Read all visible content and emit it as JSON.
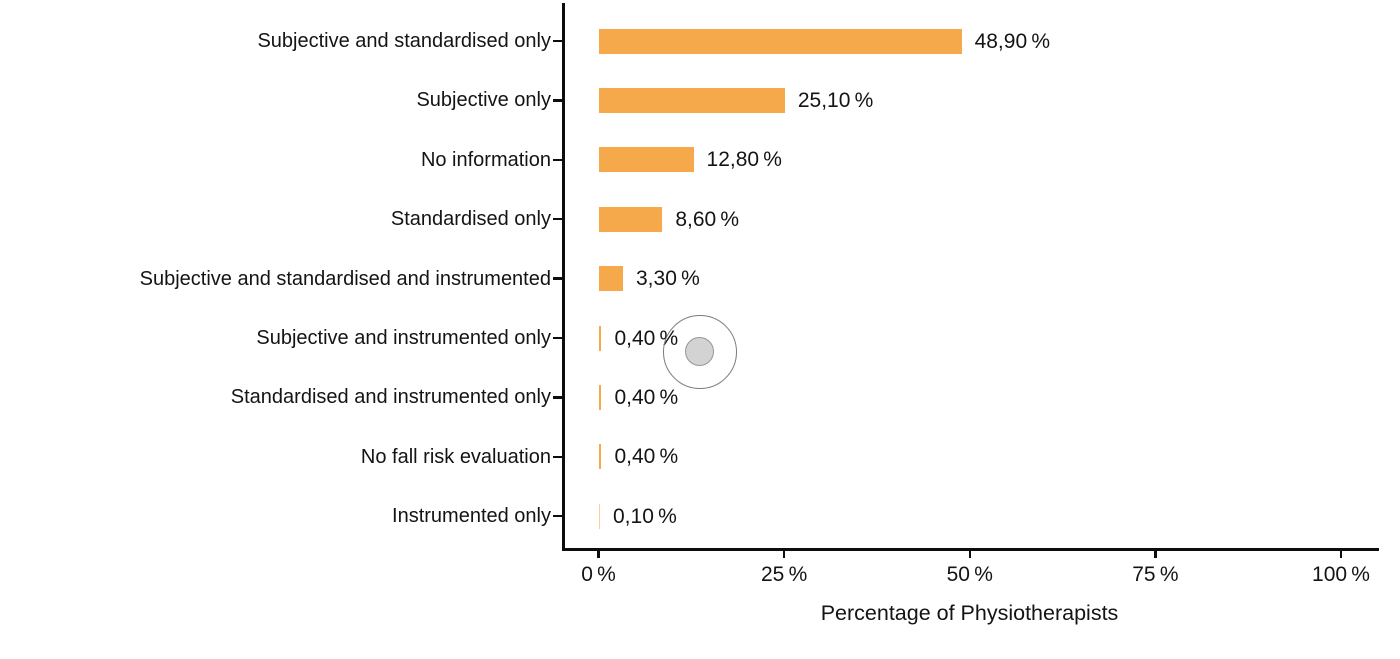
{
  "chart_data": {
    "type": "bar",
    "orientation": "horizontal",
    "title": "",
    "xlabel": "Percentage of Physiotherapists",
    "ylabel": "",
    "xlim": [
      0,
      100
    ],
    "grid": false,
    "legend": false,
    "bar_color": "#F5A94B",
    "axis_color": "#0d0d0d",
    "categories": [
      "Subjective and standardised only",
      "Subjective only",
      "No information",
      "Standardised only",
      "Subjective and standardised and instrumented",
      "Subjective and instrumented only",
      "Standardised and instrumented only",
      "No fall risk evaluation",
      "Instrumented only"
    ],
    "values": [
      48.9,
      25.1,
      12.8,
      8.6,
      3.3,
      0.4,
      0.4,
      0.4,
      0.1
    ],
    "value_labels": [
      "48,90 %",
      "25,10 %",
      "12,80 %",
      "8,60 %",
      "3,30 %",
      "0,40 %",
      "0,40 %",
      "0,40 %",
      "0,10 %"
    ],
    "x_ticks": [
      {
        "value": 0,
        "label": "0 %"
      },
      {
        "value": 25,
        "label": "25 %"
      },
      {
        "value": 50,
        "label": "50 %"
      },
      {
        "value": 75,
        "label": "75 %"
      },
      {
        "value": 100,
        "label": "100 %"
      }
    ]
  },
  "overlay": {
    "click_indicator": "click-location-marker"
  }
}
